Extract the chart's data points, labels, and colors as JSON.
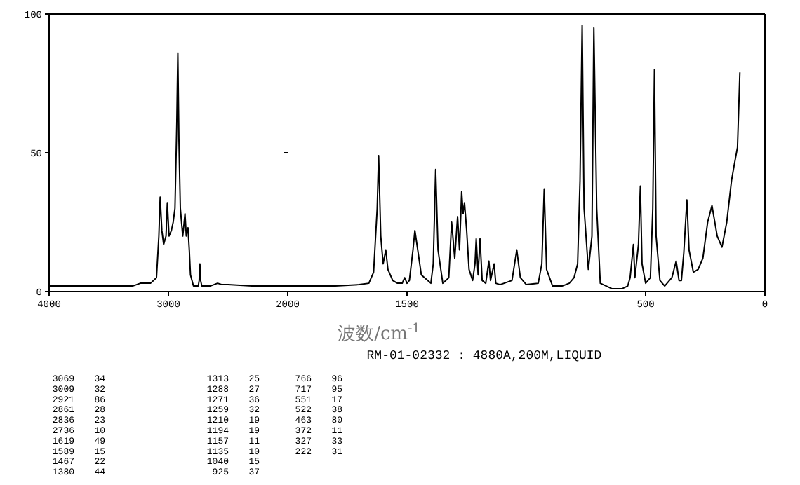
{
  "chart_data": [
    {
      "type": "line",
      "x": [
        4000,
        3500,
        3300,
        3235,
        3150,
        3100,
        3080,
        3069,
        3055,
        3040,
        3020,
        3009,
        2995,
        2975,
        2960,
        2945,
        2930,
        2921,
        2912,
        2900,
        2880,
        2870,
        2861,
        2850,
        2836,
        2825,
        2815,
        2790,
        2750,
        2742,
        2736,
        2730,
        2720,
        2650,
        2588,
        2550,
        2500,
        2300,
        2000
      ],
      "values": [
        2,
        2,
        2,
        3,
        3,
        5,
        20,
        34,
        22,
        17,
        20,
        32,
        20,
        22,
        25,
        30,
        60,
        86,
        55,
        30,
        20,
        24,
        28,
        20,
        23,
        15,
        6,
        2,
        2,
        4,
        10,
        4,
        2,
        2,
        3,
        2.5,
        2.5,
        2,
        2
      ],
      "color": "#000000",
      "xlim": [
        4000,
        2000
      ],
      "xticks": [
        4000,
        3000,
        2000
      ],
      "ylim": [
        0,
        100
      ],
      "yticks": [
        0,
        50,
        100
      ]
    },
    {
      "type": "line",
      "xlabel": "波数/cm$^{-1}$",
      "x": [
        2000,
        1800,
        1700,
        1660,
        1640,
        1625,
        1619,
        1610,
        1600,
        1589,
        1580,
        1560,
        1540,
        1520,
        1510,
        1500,
        1490,
        1475,
        1467,
        1455,
        1440,
        1400,
        1390,
        1380,
        1370,
        1350,
        1325,
        1313,
        1300,
        1288,
        1280,
        1271,
        1265,
        1259,
        1250,
        1240,
        1225,
        1215,
        1210,
        1202,
        1194,
        1185,
        1170,
        1157,
        1150,
        1135,
        1128,
        1110,
        1060,
        1040,
        1025,
        1000,
        950,
        935,
        925,
        915,
        890,
        850,
        820,
        800,
        785,
        775,
        766,
        758,
        740,
        725,
        717,
        705,
        690,
        640,
        600,
        575,
        565,
        551,
        545,
        530,
        522,
        515,
        500,
        480,
        470,
        463,
        456,
        440,
        420,
        390,
        372,
        360,
        350,
        340,
        327,
        318,
        300,
        280,
        260,
        240,
        222,
        200,
        180,
        160,
        140,
        130,
        115,
        105
      ],
      "values": [
        2,
        2,
        2.5,
        3,
        7,
        30,
        49,
        20,
        10,
        15,
        8,
        4,
        3,
        3,
        5,
        3,
        4,
        15,
        22,
        15,
        6,
        3,
        10,
        44,
        15,
        3,
        5,
        25,
        12,
        27,
        15,
        36,
        28,
        32,
        22,
        8,
        4,
        10,
        19,
        6,
        19,
        4,
        3,
        11,
        4,
        10,
        3,
        2.5,
        4,
        15,
        5,
        2.5,
        3,
        10,
        37,
        8,
        2,
        2,
        3,
        5,
        10,
        40,
        96,
        30,
        8,
        20,
        95,
        30,
        3,
        1,
        1,
        2,
        5,
        17,
        5,
        17,
        38,
        10,
        3,
        5,
        30,
        80,
        20,
        4,
        2,
        5,
        11,
        4,
        4,
        14,
        33,
        15,
        7,
        8,
        12,
        25,
        31,
        20,
        16,
        25,
        40,
        45,
        52,
        79
      ],
      "color": "#000000",
      "xlim": [
        2000,
        0
      ],
      "xticks": [
        1500,
        500,
        0
      ],
      "ylim": [
        0,
        100
      ],
      "yticks": [
        0,
        50,
        100
      ],
      "tick_labels": "x",
      "annotations": [
        "RM-01-02332 : 4880A,200M,LIQUID",
        "3069 34",
        "3009 32",
        "2921 86",
        "2861 28",
        "2836 23",
        "2736 10",
        "1619 49",
        "1589 15",
        "1467 22",
        "1380 44",
        "1313 25",
        "1288 27",
        "1271 36",
        "1259 32",
        "1210 19",
        "1194 19",
        "1157 11",
        "1135 10",
        "1040 15",
        "925 37",
        "766 96",
        "717 95",
        "551 17",
        "522 38",
        "463 80",
        "372 11",
        "327 33",
        "222 31"
      ]
    }
  ]
}
